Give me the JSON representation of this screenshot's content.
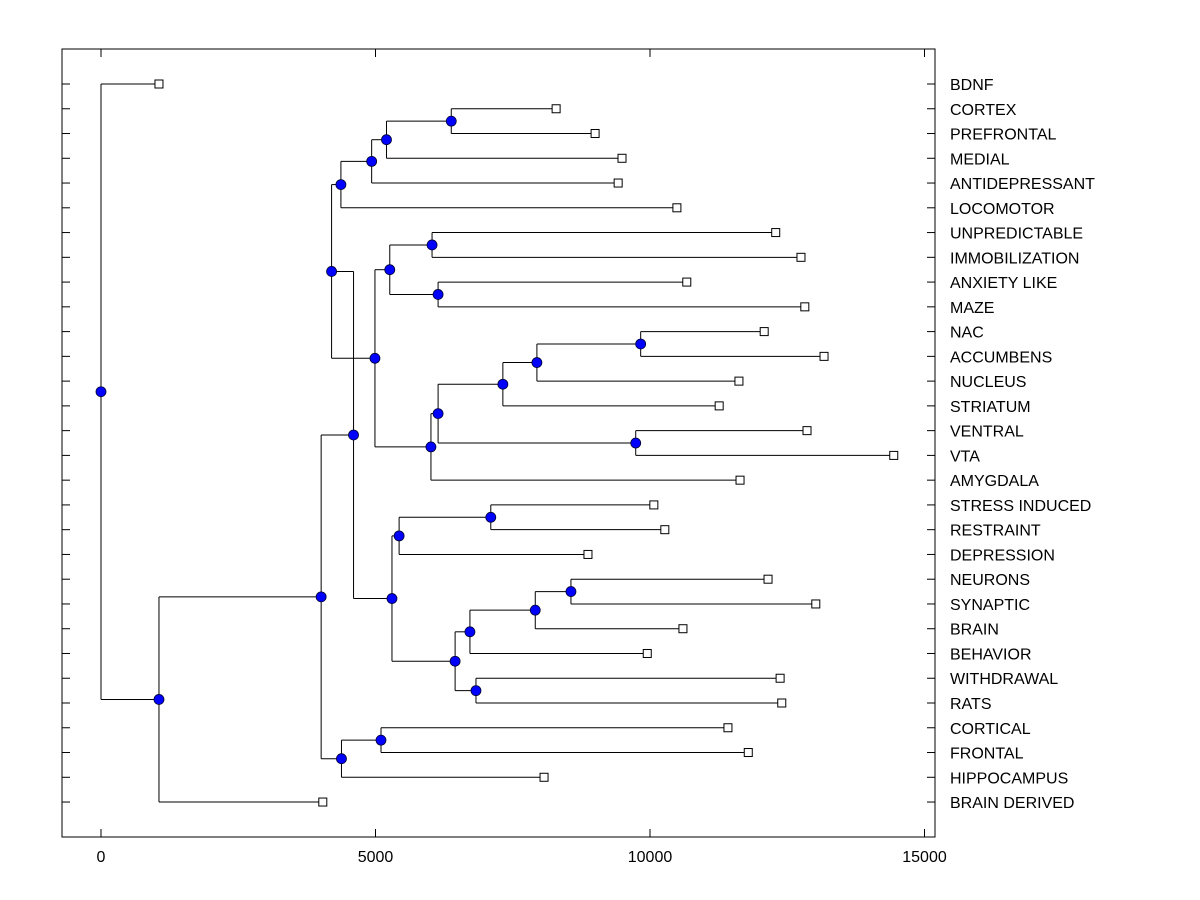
{
  "chart_data": {
    "type": "dendrogram",
    "title": "",
    "xlabel": "",
    "ylabel": "",
    "xlim": [
      -700,
      15200
    ],
    "xticks": [
      0,
      5000,
      10000,
      15000
    ],
    "xtick_labels": [
      "0",
      "5000",
      "10000",
      "15000"
    ],
    "colors": {
      "node": "#0000ff",
      "line": "#000000",
      "leaf_fill": "#ffffff"
    },
    "leaves": [
      {
        "label": "BDNF",
        "x": 1056
      },
      {
        "label": "CORTEX",
        "x": 8290
      },
      {
        "label": "PREFRONTAL",
        "x": 9000
      },
      {
        "label": "MEDIAL",
        "x": 9490
      },
      {
        "label": "ANTIDEPRESSANT",
        "x": 9420
      },
      {
        "label": "LOCOMOTOR",
        "x": 10490
      },
      {
        "label": "UNPREDICTABLE",
        "x": 12290
      },
      {
        "label": "IMMOBILIZATION",
        "x": 12750
      },
      {
        "label": "ANXIETY LIKE",
        "x": 10670
      },
      {
        "label": "MAZE",
        "x": 12820
      },
      {
        "label": "NAC",
        "x": 12080
      },
      {
        "label": "ACCUMBENS",
        "x": 13170
      },
      {
        "label": "NUCLEUS",
        "x": 11620
      },
      {
        "label": "STRIATUM",
        "x": 11260
      },
      {
        "label": "VENTRAL",
        "x": 12860
      },
      {
        "label": "VTA",
        "x": 14440
      },
      {
        "label": "AMYGDALA",
        "x": 11640
      },
      {
        "label": "STRESS INDUCED",
        "x": 10070
      },
      {
        "label": "RESTRAINT",
        "x": 10270
      },
      {
        "label": "DEPRESSION",
        "x": 8870
      },
      {
        "label": "NEURONS",
        "x": 12150
      },
      {
        "label": "SYNAPTIC",
        "x": 13020
      },
      {
        "label": "BRAIN",
        "x": 10600
      },
      {
        "label": "BEHAVIOR",
        "x": 9950
      },
      {
        "label": "WITHDRAWAL",
        "x": 12370
      },
      {
        "label": "RATS",
        "x": 12400
      },
      {
        "label": "CORTICAL",
        "x": 11420
      },
      {
        "label": "FRONTAL",
        "x": 11790
      },
      {
        "label": "HIPPOCAMPUS",
        "x": 8070
      },
      {
        "label": "BRAIN DERIVED",
        "x": 4040
      }
    ],
    "nodes": [
      {
        "id": "n1",
        "x": 6380,
        "children": [
          "L1",
          "L2"
        ]
      },
      {
        "id": "n2",
        "x": 5200,
        "children": [
          "n1",
          "L3"
        ]
      },
      {
        "id": "n3",
        "x": 4930,
        "children": [
          "n2",
          "L4"
        ]
      },
      {
        "id": "n4",
        "x": 4370,
        "children": [
          "n3",
          "L5"
        ]
      },
      {
        "id": "n5",
        "x": 6030,
        "children": [
          "L6",
          "L7"
        ]
      },
      {
        "id": "n6",
        "x": 6140,
        "children": [
          "L8",
          "L9"
        ]
      },
      {
        "id": "n7",
        "x": 5260,
        "children": [
          "n5",
          "n6"
        ]
      },
      {
        "id": "n8",
        "x": 9830,
        "children": [
          "L10",
          "L11"
        ]
      },
      {
        "id": "n9",
        "x": 7940,
        "children": [
          "n8",
          "L12"
        ]
      },
      {
        "id": "n10",
        "x": 7320,
        "children": [
          "n9",
          "L13"
        ]
      },
      {
        "id": "n11",
        "x": 9740,
        "children": [
          "L14",
          "L15"
        ]
      },
      {
        "id": "n12",
        "x": 6140,
        "children": [
          "n10",
          "n11"
        ]
      },
      {
        "id": "n13",
        "x": 6010,
        "children": [
          "n12",
          "L16"
        ]
      },
      {
        "id": "n14",
        "x": 4990,
        "children": [
          "n7",
          "n13"
        ]
      },
      {
        "id": "n15",
        "x": 4200,
        "children": [
          "n4",
          "n14"
        ]
      },
      {
        "id": "n16",
        "x": 7100,
        "children": [
          "L17",
          "L18"
        ]
      },
      {
        "id": "n17",
        "x": 5430,
        "children": [
          "n16",
          "L19"
        ]
      },
      {
        "id": "n18",
        "x": 8560,
        "children": [
          "L20",
          "L21"
        ]
      },
      {
        "id": "n19",
        "x": 7910,
        "children": [
          "n18",
          "L22"
        ]
      },
      {
        "id": "n20",
        "x": 6720,
        "children": [
          "n19",
          "L23"
        ]
      },
      {
        "id": "n21",
        "x": 6830,
        "children": [
          "L24",
          "L25"
        ]
      },
      {
        "id": "n22",
        "x": 6450,
        "children": [
          "n20",
          "n21"
        ]
      },
      {
        "id": "n23",
        "x": 5300,
        "children": [
          "n17",
          "n22"
        ]
      },
      {
        "id": "n24",
        "x": 4600,
        "children": [
          "n15",
          "n23"
        ]
      },
      {
        "id": "n25",
        "x": 5100,
        "children": [
          "L26",
          "L27"
        ]
      },
      {
        "id": "n26",
        "x": 4380,
        "children": [
          "n25",
          "L28"
        ]
      },
      {
        "id": "n27",
        "x": 4010,
        "children": [
          "n24",
          "n26"
        ]
      },
      {
        "id": "n28",
        "x": 1056,
        "children": [
          "n27",
          "L29"
        ]
      },
      {
        "id": "n29",
        "x": 0,
        "children": [
          "L0",
          "n28"
        ]
      }
    ]
  }
}
